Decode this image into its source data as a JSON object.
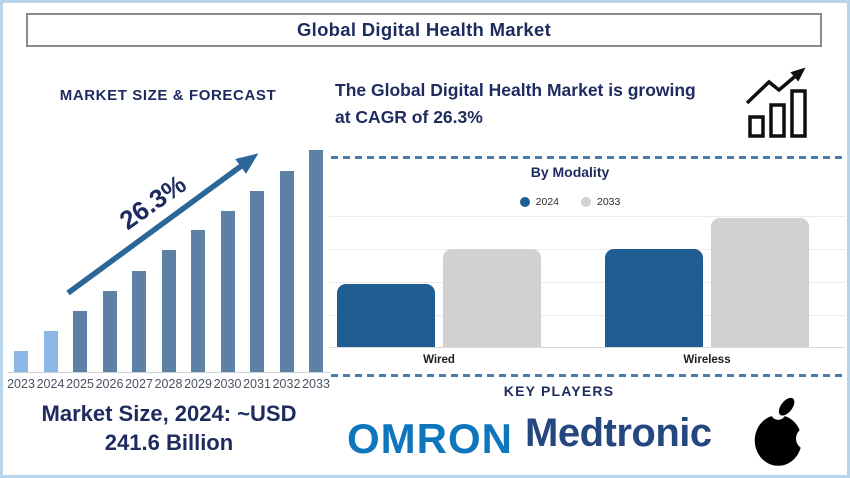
{
  "window": {
    "title": "Global Digital Health Market"
  },
  "forecast": {
    "heading": "MARKET SIZE & FORECAST",
    "cagr_label": "26.3%",
    "market_size_line1": "Market Size, 2024: ~USD",
    "market_size_line2": "241.6 Billion"
  },
  "growth_note": {
    "line1": "The Global Digital Health Market is growing",
    "line2": "at CAGR of 26.3%",
    "icon": "growth-bars-arrow-icon"
  },
  "modality": {
    "title": "By Modality",
    "legend": [
      {
        "label": "2024"
      },
      {
        "label": "2033"
      }
    ]
  },
  "key_players": {
    "heading": "KEY PLAYERS",
    "brands": [
      "OMRON",
      "Medtronic"
    ],
    "icon": "apple-logo"
  },
  "chart_data": [
    {
      "id": "market-size-forecast",
      "type": "bar",
      "title": "MARKET SIZE & FORECAST",
      "categories": [
        "2023",
        "2024",
        "2025",
        "2026",
        "2027",
        "2028",
        "2029",
        "2030",
        "2031",
        "2032",
        "2033"
      ],
      "values": [
        9.5,
        18.5,
        27.5,
        36.5,
        45.5,
        55,
        64,
        72.5,
        81.5,
        90.5,
        100
      ],
      "ylim": [
        0,
        100
      ],
      "unit": "relative height index (no y-axis shown in figure)",
      "known_point": "2024 market size ~USD 241.6 Billion",
      "annotation": "26.3% CAGR trend arrow",
      "highlight_note": "2023 and 2024 bars light blue; 2025-2033 steel blue",
      "grid": false
    },
    {
      "id": "by-modality",
      "type": "bar",
      "title": "By Modality",
      "categories": [
        "Wired",
        "Wireless"
      ],
      "series": [
        {
          "name": "2024",
          "values": [
            48,
            74
          ]
        },
        {
          "name": "2033",
          "values": [
            74,
            98
          ]
        }
      ],
      "ylim": [
        0,
        100
      ],
      "unit": "relative height (no y-axis labels shown)",
      "legend_position": "top",
      "grid": true
    }
  ],
  "colors": {
    "navy_text": "#1d2b5f",
    "bar_light_blue": "#8cb8e5",
    "bar_steel_blue": "#5d81a5",
    "trend_arrow": "#2b6699",
    "modality_blue": "#1f5d92",
    "modality_gray": "#d1d1d1",
    "dashed_divider": "#4a7cae",
    "omron_blue": "#0e76bc",
    "medtronic_navy": "#24477f",
    "outer_border": "#bad5e9",
    "title_box_border": "#8b8b8b"
  }
}
